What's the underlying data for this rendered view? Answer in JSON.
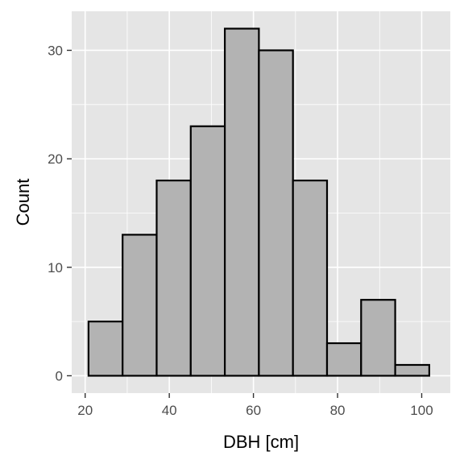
{
  "chart_data": {
    "type": "bar",
    "subtype": "histogram",
    "xlabel": "DBH [cm]",
    "ylabel": "Count",
    "xlim": [
      16.8,
      106.8
    ],
    "ylim": [
      -1.6,
      33.6
    ],
    "x_ticks": [
      20,
      40,
      60,
      80,
      100
    ],
    "y_ticks": [
      0,
      10,
      20,
      30
    ],
    "grid": true,
    "bins": [
      {
        "x0": 20.8,
        "x1": 28.9,
        "count": 5
      },
      {
        "x0": 28.9,
        "x1": 37.0,
        "count": 13
      },
      {
        "x0": 37.0,
        "x1": 45.1,
        "count": 18
      },
      {
        "x0": 45.1,
        "x1": 53.2,
        "count": 23
      },
      {
        "x0": 53.2,
        "x1": 61.3,
        "count": 32
      },
      {
        "x0": 61.3,
        "x1": 69.4,
        "count": 30
      },
      {
        "x0": 69.4,
        "x1": 77.5,
        "count": 18
      },
      {
        "x0": 77.5,
        "x1": 85.6,
        "count": 3
      },
      {
        "x0": 85.6,
        "x1": 93.7,
        "count": 7
      },
      {
        "x0": 93.7,
        "x1": 101.8,
        "count": 1
      }
    ],
    "colors": {
      "panel": "#e5e5e5",
      "grid": "#ffffff",
      "bar_fill": "#b3b3b3",
      "bar_stroke": "#000000"
    }
  }
}
